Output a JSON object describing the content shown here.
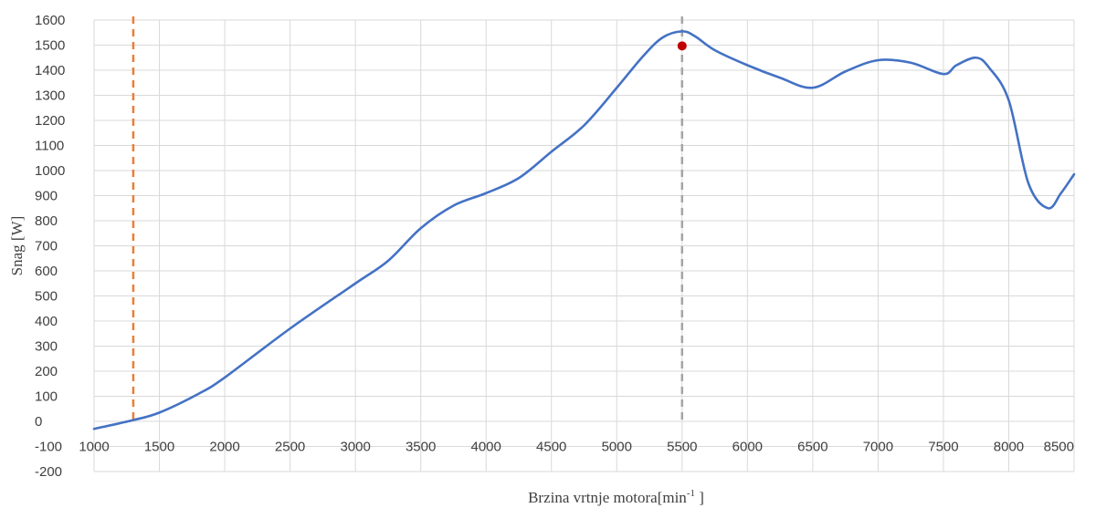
{
  "chart_data": {
    "type": "line",
    "title": "",
    "xlabel": "Brzina vrtnje motora[min",
    "xlabel_sup": "-1",
    "xlabel_close": " ]",
    "ylabel": "Snag [W]",
    "xlim": [
      1000,
      8500
    ],
    "ylim": [
      -200,
      1600
    ],
    "x_ticks": [
      1000,
      1500,
      2000,
      2500,
      3000,
      3500,
      4000,
      4500,
      5000,
      5500,
      6000,
      6500,
      7000,
      7500,
      8000,
      8500
    ],
    "y_ticks": [
      -200,
      -100,
      0,
      100,
      200,
      300,
      400,
      500,
      600,
      700,
      800,
      900,
      1000,
      1100,
      1200,
      1300,
      1400,
      1500,
      1600
    ],
    "grid": true,
    "legend": "none",
    "series": [
      {
        "color": "#4472C4",
        "x": [
          1000,
          1300,
          1500,
          1800,
          2000,
          2500,
          3000,
          3250,
          3500,
          3750,
          4000,
          4250,
          4500,
          4750,
          5000,
          5200,
          5350,
          5500,
          5600,
          5750,
          6000,
          6250,
          6500,
          6750,
          7000,
          7250,
          7500,
          7600,
          7750,
          7850,
          8000,
          8150,
          8300,
          8400,
          8500
        ],
        "y": [
          -30,
          5,
          35,
          110,
          175,
          370,
          550,
          640,
          770,
          860,
          910,
          970,
          1075,
          1180,
          1330,
          1455,
          1530,
          1555,
          1535,
          1480,
          1420,
          1370,
          1330,
          1395,
          1440,
          1430,
          1385,
          1420,
          1450,
          1410,
          1280,
          950,
          850,
          910,
          985
        ]
      }
    ],
    "reference_lines": [
      {
        "x": 1300,
        "color": "#ED7D31"
      },
      {
        "x": 5500,
        "color": "#A5A5A5"
      }
    ],
    "markers": [
      {
        "x": 5500,
        "y": 1497,
        "color": "#C00000"
      }
    ]
  }
}
